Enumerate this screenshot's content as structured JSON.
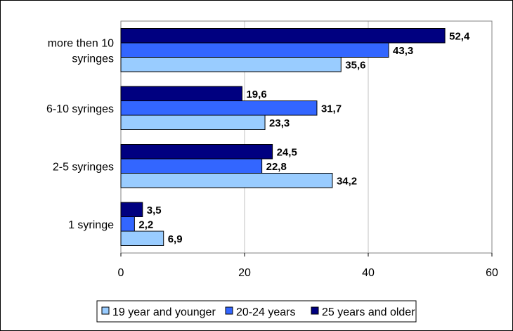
{
  "chart_data": {
    "type": "bar",
    "orientation": "horizontal",
    "categories": [
      "more then 10\nsyringes",
      "6-10 syringes",
      "2-5 syringes",
      "1 syringe"
    ],
    "series": [
      {
        "name": "19 year and younger",
        "color": "#99CCFF",
        "values": [
          35.6,
          23.3,
          34.2,
          6.9
        ]
      },
      {
        "name": "20-24 years",
        "color": "#3366FF",
        "values": [
          43.3,
          31.7,
          22.8,
          2.2
        ]
      },
      {
        "name": "25 years and older",
        "color": "#000080",
        "values": [
          52.4,
          19.6,
          24.5,
          3.5
        ]
      }
    ],
    "xlim": [
      0,
      60
    ],
    "xticks": [
      0,
      20,
      40,
      60
    ],
    "data_labels": {
      "19 year and younger": [
        "35,6",
        "23,3",
        "34,2",
        "6,9"
      ],
      "20-24 years": [
        "43,3",
        "31,7",
        "22,8",
        "2,2"
      ],
      "25 years and older": [
        "52,4",
        "19,6",
        "24,5",
        "3,5"
      ]
    },
    "grid": "vertical",
    "legend_position": "bottom"
  }
}
